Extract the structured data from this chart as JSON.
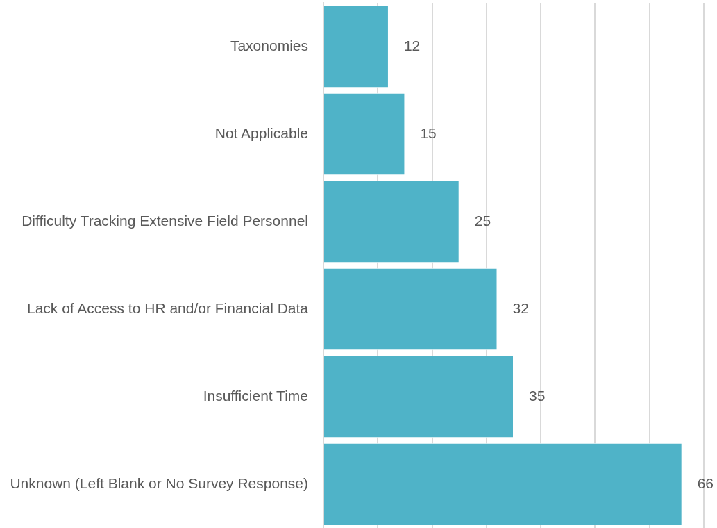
{
  "chart_data": {
    "type": "bar",
    "orientation": "horizontal",
    "categories": [
      "Taxonomies",
      "Not Applicable",
      "Difficulty Tracking Extensive Field Personnel",
      "Lack of Access to HR and/or Financial Data",
      "Insufficient Time",
      "Unknown (Left Blank or No Survey Response)"
    ],
    "values": [
      12,
      15,
      25,
      32,
      35,
      66
    ],
    "color": "#4fb3c8",
    "xlim": [
      0,
      70
    ],
    "xticks": [
      {
        "value": 0,
        "label": null
      },
      {
        "value": 10,
        "label": null
      },
      {
        "value": 20,
        "label": null
      },
      {
        "value": 30,
        "label": null
      },
      {
        "value": 40,
        "label": null
      },
      {
        "value": 50,
        "label": null
      },
      {
        "value": 60,
        "label": null
      },
      {
        "value": 70,
        "label": null
      }
    ],
    "grid": "x",
    "tick_labels": "y",
    "data_labels": true
  }
}
